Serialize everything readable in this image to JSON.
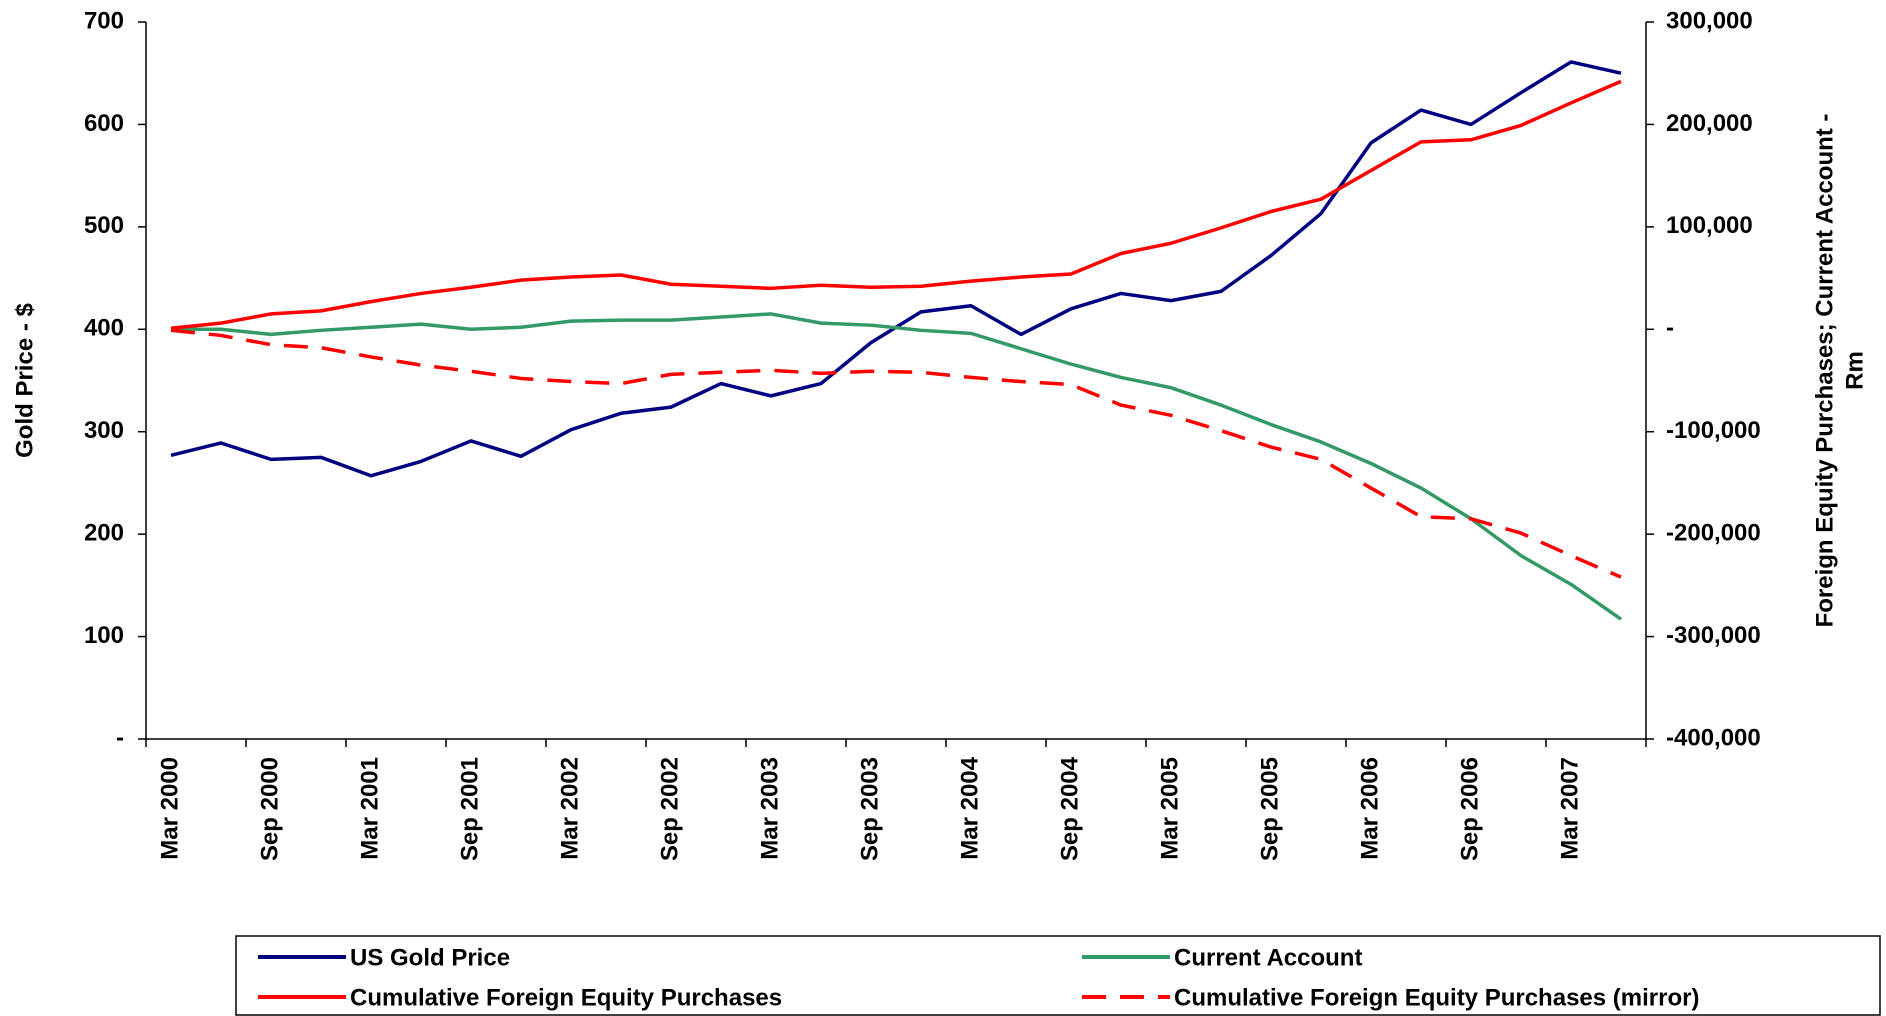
{
  "chart_data": {
    "type": "line",
    "y_label": "Gold Price - $",
    "y2_label_lines": [
      "Foreign Equity Purchases;  Current Account -",
      "Rm"
    ],
    "categories": [
      "Mar 2000",
      null,
      "Sep 2000",
      null,
      "Mar 2001",
      null,
      "Sep 2001",
      null,
      "Mar 2002",
      null,
      "Sep 2002",
      null,
      "Mar 2003",
      null,
      "Sep 2003",
      null,
      "Mar 2004",
      null,
      "Sep 2004",
      null,
      "Mar 2005",
      null,
      "Sep 2005",
      null,
      "Mar 2006",
      null,
      "Sep 2006",
      null,
      "Mar 2007",
      null
    ],
    "ylim": [
      0,
      700
    ],
    "yticks": [
      {
        "value": 0,
        "label": "-"
      },
      100,
      200,
      300,
      400,
      500,
      600,
      700
    ],
    "y2lim": [
      -400000,
      300000
    ],
    "y2ticks": [
      {
        "value": -400000,
        "label": "-400,000"
      },
      {
        "value": -300000,
        "label": "-300,000"
      },
      {
        "value": -200000,
        "label": "-200,000"
      },
      {
        "value": -100000,
        "label": "-100,000"
      },
      {
        "value": 0,
        "label": "-"
      },
      {
        "value": 100000,
        "label": "100,000"
      },
      {
        "value": 200000,
        "label": "200,000"
      },
      {
        "value": 300000,
        "label": "300,000"
      }
    ],
    "grid": false,
    "series": [
      {
        "name": "US Gold Price",
        "color": "#000080",
        "dashed": false,
        "values": [
          277,
          289,
          273,
          275,
          257,
          271,
          291,
          276,
          302,
          318,
          324,
          347,
          335,
          347,
          387,
          417,
          423,
          395,
          420,
          435,
          428,
          437,
          472,
          513,
          582,
          614,
          600,
          631,
          661,
          650
        ]
      },
      {
        "name": "Current Account",
        "color": "#339966",
        "axis": "y2",
        "dashed": false,
        "values": [
          0,
          0,
          -5000,
          -1000,
          2000,
          5000,
          0,
          2000,
          8000,
          9000,
          9000,
          12000,
          15000,
          6000,
          4000,
          -1000,
          -4000,
          -19000,
          -34000,
          -47000,
          -57000,
          -74000,
          -93000,
          -110000,
          -131000,
          -155000,
          -185000,
          -221000,
          -249000,
          -283000
        ]
      },
      {
        "name": "Cumulative Foreign Equity Purchases",
        "color": "#ff0000",
        "axis": "y2",
        "dashed": false,
        "values": [
          1000,
          6000,
          15000,
          18000,
          27000,
          35000,
          41000,
          48000,
          51000,
          53000,
          44000,
          42000,
          40000,
          43000,
          41000,
          42000,
          47000,
          51000,
          54000,
          74000,
          84000,
          99000,
          115000,
          127000,
          155000,
          183000,
          185000,
          199000,
          221000,
          242000
        ]
      },
      {
        "name": "Cumulative Foreign Equity Purchases (mirror)",
        "color": "#ff0000",
        "axis": "y2",
        "dashed": true,
        "values": [
          -1000,
          -6000,
          -15000,
          -18000,
          -27000,
          -35000,
          -41000,
          -48000,
          -51000,
          -53000,
          -44000,
          -42000,
          -40000,
          -43000,
          -41000,
          -42000,
          -47000,
          -51000,
          -54000,
          -74000,
          -84000,
          -99000,
          -115000,
          -127000,
          -155000,
          -183000,
          -185000,
          -199000,
          -221000,
          -242000
        ]
      }
    ]
  }
}
